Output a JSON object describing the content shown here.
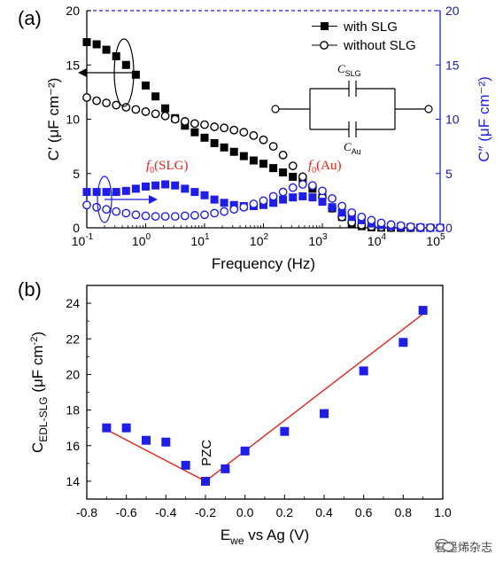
{
  "chart_data": [
    {
      "panel_label": "(a)",
      "type": "scatter",
      "xlabel": "Frequency (Hz)",
      "ylabel_left": "C′ (μF cm⁻²)",
      "ylabel_right": "C″ (μF cm⁻²)",
      "x_scale": "log",
      "xlim": [
        0.1,
        100000
      ],
      "ylim_left": [
        0,
        20
      ],
      "ylim_right": [
        0,
        20
      ],
      "x_ticks": [
        {
          "value": 0.1,
          "base": "10",
          "exp": "-1"
        },
        {
          "value": 1,
          "base": "10",
          "exp": "0"
        },
        {
          "value": 10,
          "base": "10",
          "exp": "1"
        },
        {
          "value": 100,
          "base": "10",
          "exp": "2"
        },
        {
          "value": 1000,
          "base": "10",
          "exp": "3"
        },
        {
          "value": 10000,
          "base": "10",
          "exp": "4"
        },
        {
          "value": 100000,
          "base": "10",
          "exp": "5"
        }
      ],
      "y_ticks_left": [
        "0",
        "5",
        "10",
        "15",
        "20"
      ],
      "y_ticks_right": [
        "0",
        "5",
        "10",
        "15",
        "20"
      ],
      "legend": [
        {
          "label": "with SLG",
          "marker": "filled-square"
        },
        {
          "label": "without SLG",
          "marker": "open-circle"
        }
      ],
      "annotations": {
        "f0_slg": "f0(SLG)",
        "f0_au": "f0(Au)",
        "circuit_c_slg": "CSLG",
        "circuit_c_au": "CAu"
      },
      "series": [
        {
          "name": "with SLG",
          "axis": "left",
          "marker": "filled-square",
          "color": "#000000",
          "x": [
            0.1,
            0.147,
            0.215,
            0.316,
            0.464,
            0.681,
            1,
            1.47,
            2.15,
            3.16,
            4.64,
            6.81,
            10,
            14.7,
            21.5,
            31.6,
            46.4,
            68.1,
            100,
            147,
            215,
            316,
            464,
            681,
            1000,
            1468,
            2154,
            3162,
            4642,
            6813,
            10000,
            14678,
            21544,
            31623,
            46416,
            68129,
            100000
          ],
          "y": [
            17.1,
            16.9,
            16.4,
            15.8,
            15.0,
            14.1,
            13.1,
            12.1,
            11.0,
            10.1,
            9.4,
            8.8,
            8.3,
            7.8,
            7.4,
            7.0,
            6.6,
            6.2,
            5.9,
            5.5,
            5.1,
            4.7,
            4.2,
            3.6,
            2.8,
            1.8,
            1.0,
            0.4,
            0.15,
            0.05,
            0.02,
            0.01,
            0.0,
            0.0,
            0.0,
            0.0,
            0.0
          ]
        },
        {
          "name": "without SLG",
          "axis": "left",
          "marker": "open-circle",
          "color": "#000000",
          "x": [
            0.1,
            0.147,
            0.215,
            0.316,
            0.464,
            0.681,
            1,
            1.47,
            2.15,
            3.16,
            4.64,
            6.81,
            10,
            14.7,
            21.5,
            31.6,
            46.4,
            68.1,
            100,
            147,
            215,
            316,
            464,
            681,
            1000,
            1468,
            2154,
            3162,
            4642,
            6813,
            10000,
            14678,
            21544,
            31623,
            46416,
            68129,
            100000
          ],
          "y": [
            12.0,
            11.7,
            11.5,
            11.3,
            11.1,
            10.9,
            10.7,
            10.5,
            10.3,
            10.0,
            9.8,
            9.6,
            9.5,
            9.3,
            9.2,
            9.0,
            8.8,
            8.5,
            8.1,
            7.5,
            6.7,
            5.7,
            4.7,
            3.8,
            2.8,
            1.8,
            1.0,
            0.5,
            0.25,
            0.1,
            0.05,
            0.02,
            0.0,
            0.0,
            0.0,
            0.0,
            0.0
          ]
        },
        {
          "name": "with SLG",
          "axis": "right",
          "marker": "filled-square",
          "color": "#1e1ee8",
          "x": [
            0.1,
            0.147,
            0.215,
            0.316,
            0.464,
            0.681,
            1,
            1.47,
            2.15,
            3.16,
            4.64,
            6.81,
            10,
            14.7,
            21.5,
            31.6,
            46.4,
            68.1,
            100,
            147,
            215,
            316,
            464,
            681,
            1000,
            1468,
            2154,
            3162,
            4642,
            6813,
            10000,
            14678,
            21544,
            31623,
            46416,
            68129,
            100000
          ],
          "y": [
            3.3,
            3.3,
            3.3,
            3.3,
            3.4,
            3.6,
            3.8,
            3.9,
            4.0,
            3.9,
            3.6,
            3.3,
            3.0,
            2.6,
            2.3,
            2.1,
            2.0,
            2.0,
            2.1,
            2.3,
            2.6,
            2.8,
            2.9,
            2.8,
            2.4,
            1.9,
            1.4,
            1.0,
            0.7,
            0.4,
            0.25,
            0.15,
            0.1,
            0.05,
            0.02,
            0.0,
            0.0
          ]
        },
        {
          "name": "without SLG",
          "axis": "right",
          "marker": "open-circle",
          "color": "#1e1ee8",
          "x": [
            0.1,
            0.147,
            0.215,
            0.316,
            0.464,
            0.681,
            1,
            1.47,
            2.15,
            3.16,
            4.64,
            6.81,
            10,
            14.7,
            21.5,
            31.6,
            46.4,
            68.1,
            100,
            147,
            215,
            316,
            464,
            681,
            1000,
            1468,
            2154,
            3162,
            4642,
            6813,
            10000,
            14678,
            21544,
            31623,
            46416,
            68129,
            100000
          ],
          "y": [
            2.1,
            1.9,
            1.7,
            1.5,
            1.35,
            1.2,
            1.1,
            1.05,
            1.05,
            1.05,
            1.1,
            1.15,
            1.2,
            1.35,
            1.5,
            1.7,
            1.9,
            2.2,
            2.5,
            2.9,
            3.3,
            3.7,
            4.0,
            3.9,
            3.4,
            2.7,
            2.0,
            1.4,
            1.0,
            0.7,
            0.45,
            0.3,
            0.2,
            0.1,
            0.05,
            0.02,
            0.0
          ]
        }
      ]
    },
    {
      "panel_label": "(b)",
      "type": "scatter",
      "xlabel": "Ewe vs Ag (V)",
      "ylabel": "CEDL-SLG (μF cm⁻²)",
      "xlim": [
        -0.8,
        1.0
      ],
      "ylim": [
        13,
        25
      ],
      "x_ticks": [
        "-0.8",
        "-0.6",
        "-0.4",
        "-0.2",
        "0.0",
        "0.2",
        "0.4",
        "0.6",
        "0.8",
        "1.0"
      ],
      "y_ticks": [
        "14",
        "16",
        "18",
        "20",
        "22",
        "24"
      ],
      "annotation": "PZC",
      "series": [
        {
          "marker": "filled-square",
          "color": "#1e1ee8",
          "x": [
            -0.7,
            -0.6,
            -0.5,
            -0.4,
            -0.3,
            -0.2,
            -0.1,
            0.0,
            0.2,
            0.4,
            0.6,
            0.8,
            0.9
          ],
          "y": [
            17.0,
            17.0,
            16.3,
            16.2,
            14.9,
            14.0,
            14.7,
            15.7,
            16.8,
            17.8,
            20.2,
            21.8,
            23.6
          ]
        }
      ],
      "fit_lines": [
        {
          "color": "#e2231a",
          "x": [
            -0.7,
            -0.2
          ],
          "y": [
            16.9,
            14.0
          ]
        },
        {
          "color": "#e2231a",
          "x": [
            -0.2,
            0.9
          ],
          "y": [
            14.0,
            23.4
          ]
        }
      ]
    }
  ],
  "watermark": {
    "text": "石墨烯杂志"
  }
}
